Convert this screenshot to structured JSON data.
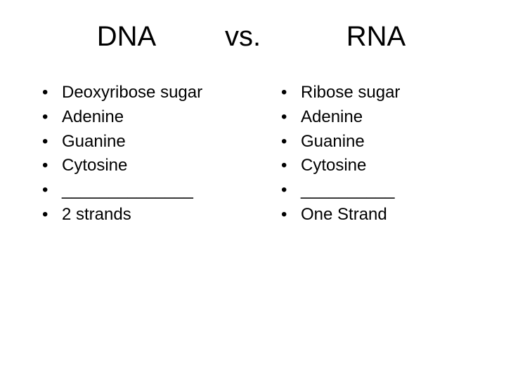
{
  "title": {
    "left": "DNA",
    "mid": "vs.",
    "right": "RNA"
  },
  "left_column": {
    "items": [
      "Deoxyribose sugar",
      "Adenine",
      "Guanine",
      "Cytosine",
      "______________",
      "2 strands"
    ]
  },
  "right_column": {
    "items": [
      "Ribose sugar",
      "Adenine",
      "Guanine",
      "Cytosine",
      "__________",
      "One Strand"
    ]
  },
  "style": {
    "background_color": "#ffffff",
    "text_color": "#000000",
    "title_fontsize": 40,
    "body_fontsize": 24,
    "font_family": "Arial"
  }
}
